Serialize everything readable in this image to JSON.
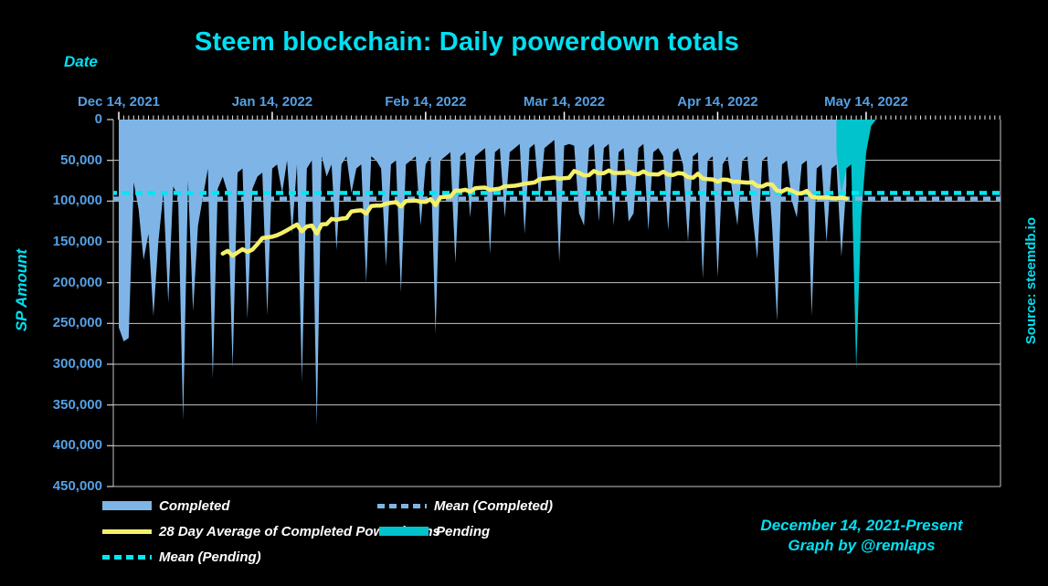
{
  "title": {
    "text": "Steem blockchain: Daily powerdown totals",
    "color": "#00E0F2"
  },
  "axes": {
    "x_title": "Date",
    "y_title": "SP Amount",
    "axis_title_color": "#00E0F2",
    "tick_label_color": "#55A0E4",
    "grid_color": "#C4C4C4",
    "tick_mark_color": "#E8E8E8",
    "x_ticks": [
      {
        "label": "Dec 14, 2021",
        "day": 0
      },
      {
        "label": "Jan 14, 2022",
        "day": 31
      },
      {
        "label": "Feb 14, 2022",
        "day": 62
      },
      {
        "label": "Mar 14, 2022",
        "day": 90
      },
      {
        "label": "Apr 14, 2022",
        "day": 121
      },
      {
        "label": "May 14, 2022",
        "day": 151
      }
    ],
    "y_ticks": [
      {
        "label": "0",
        "value": 0
      },
      {
        "label": "50,000",
        "value": 50000
      },
      {
        "label": "100,000",
        "value": 100000
      },
      {
        "label": "150,000",
        "value": 150000
      },
      {
        "label": "200,000",
        "value": 200000
      },
      {
        "label": "250,000",
        "value": 250000
      },
      {
        "label": "300,000",
        "value": 300000
      },
      {
        "label": "350,000",
        "value": 350000
      },
      {
        "label": "400,000",
        "value": 400000
      },
      {
        "label": "450,000",
        "value": 450000
      }
    ]
  },
  "source_label": {
    "text": "Source: steemdb.io",
    "color": "#00E0F2"
  },
  "caption": {
    "line1": "December 14, 2021-Present",
    "line2": "Graph by @remlaps",
    "color": "#00E0F2"
  },
  "legend": [
    {
      "label": "Completed",
      "swatch": "fill",
      "color": "#7FB5E6"
    },
    {
      "label": "Mean (Completed)",
      "swatch": "dotted",
      "color": "#7FB5E6"
    },
    {
      "label": "28 Day Average of Completed Powerdowns",
      "swatch": "line",
      "color": "#F5F06A"
    },
    {
      "label": "Pending",
      "swatch": "fill",
      "color": "#00C3CB"
    },
    {
      "label": "Mean (Pending)",
      "swatch": "dotted",
      "color": "#00E8F2"
    }
  ],
  "chart_data": {
    "type": "area",
    "title": "Steem blockchain: Daily powerdown totals",
    "xlabel": "Date",
    "ylabel": "SP Amount",
    "x_start_date": "2021-12-14",
    "x_axis_span_days": 179,
    "ylim": [
      0,
      450000
    ],
    "y_axis_inverted": true,
    "grid": true,
    "legend_position": "bottom",
    "series": [
      {
        "name": "Completed",
        "type": "area",
        "color": "#7FB5E6",
        "start_day": 0,
        "unit": "SP",
        "values": [
          255000,
          272000,
          268000,
          77000,
          110000,
          172000,
          140000,
          241000,
          150000,
          90000,
          225000,
          82000,
          95000,
          369000,
          75000,
          235000,
          130000,
          95000,
          60000,
          318000,
          85000,
          70000,
          90000,
          305000,
          65000,
          60000,
          244000,
          85000,
          70000,
          65000,
          240000,
          60000,
          55000,
          90000,
          50000,
          140000,
          55000,
          322000,
          60000,
          50000,
          376000,
          45000,
          70000,
          55000,
          160000,
          55000,
          45000,
          90000,
          60000,
          55000,
          200000,
          45000,
          50000,
          60000,
          180000,
          55000,
          50000,
          212000,
          55000,
          50000,
          45000,
          130000,
          55000,
          45000,
          263000,
          50000,
          45000,
          40000,
          176000,
          45000,
          40000,
          120000,
          45000,
          40000,
          35000,
          165000,
          40000,
          35000,
          120000,
          40000,
          35000,
          30000,
          140000,
          35000,
          30000,
          100000,
          35000,
          30000,
          25000,
          175000,
          32000,
          30000,
          32000,
          115000,
          130000,
          35000,
          30000,
          125000,
          35000,
          30000,
          130000,
          40000,
          35000,
          125000,
          115000,
          35000,
          30000,
          136000,
          40000,
          35000,
          45000,
          136000,
          40000,
          35000,
          55000,
          150000,
          45000,
          40000,
          195000,
          50000,
          45000,
          193000,
          55000,
          45000,
          90000,
          130000,
          50000,
          45000,
          115000,
          171000,
          50000,
          45000,
          130000,
          247000,
          55000,
          50000,
          100000,
          120000,
          55000,
          50000,
          241000,
          60000,
          55000,
          150000,
          60000,
          55000,
          168000,
          80000
        ]
      },
      {
        "name": "Pending",
        "type": "area",
        "color": "#00C3CB",
        "start_day": 145,
        "unit": "SP",
        "values": [
          40000,
          90000,
          60000,
          55000,
          306000,
          120000,
          40000,
          8000,
          0
        ]
      },
      {
        "name": "28 Day Average of Completed Powerdowns",
        "type": "line",
        "color": "#F5F06A",
        "derived_from": "Completed",
        "window_days": 28,
        "plot_from_day": 21
      },
      {
        "name": "Mean (Completed)",
        "type": "hline",
        "style": "dotted",
        "color": "#7FB5E6",
        "value": 97000
      },
      {
        "name": "Mean (Pending)",
        "type": "hline",
        "style": "dotted",
        "color": "#00E8F2",
        "value": 90000
      }
    ]
  }
}
